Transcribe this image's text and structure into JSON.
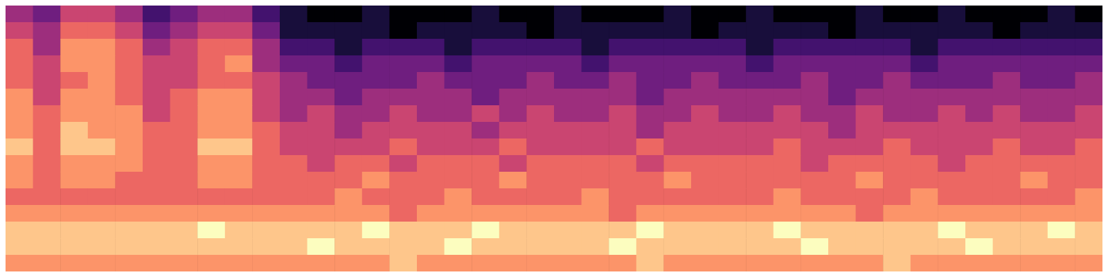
{
  "chart_data": {
    "type": "heatmap",
    "tick_labels": false,
    "zlim": [
      0,
      9
    ],
    "cells": [
      [
        4,
        3,
        5,
        5,
        4,
        2,
        3,
        4,
        4,
        2,
        1,
        0,
        0,
        1,
        0,
        0,
        0,
        1,
        0,
        0,
        1,
        0,
        0,
        0,
        1,
        0,
        0,
        1,
        0,
        0,
        0,
        1,
        0,
        0,
        1,
        0,
        0,
        0,
        1,
        0
      ],
      [
        5,
        4,
        6,
        6,
        5,
        3,
        4,
        5,
        5,
        3,
        1,
        1,
        1,
        1,
        0,
        1,
        1,
        1,
        1,
        0,
        1,
        1,
        1,
        1,
        1,
        0,
        1,
        1,
        1,
        1,
        0,
        1,
        1,
        1,
        1,
        1,
        0,
        1,
        1,
        1
      ],
      [
        6,
        4,
        7,
        7,
        6,
        4,
        5,
        6,
        6,
        4,
        2,
        2,
        1,
        2,
        2,
        2,
        1,
        2,
        2,
        2,
        2,
        1,
        2,
        2,
        2,
        2,
        2,
        1,
        2,
        2,
        2,
        2,
        2,
        1,
        2,
        2,
        2,
        2,
        2,
        2
      ],
      [
        6,
        5,
        7,
        7,
        6,
        5,
        5,
        6,
        7,
        4,
        3,
        3,
        2,
        3,
        3,
        3,
        2,
        3,
        3,
        3,
        3,
        2,
        3,
        3,
        3,
        3,
        3,
        2,
        3,
        3,
        3,
        3,
        3,
        2,
        3,
        3,
        3,
        3,
        3,
        3
      ],
      [
        6,
        5,
        6,
        7,
        6,
        5,
        5,
        6,
        6,
        5,
        4,
        3,
        3,
        3,
        3,
        4,
        3,
        3,
        3,
        4,
        3,
        3,
        4,
        3,
        3,
        4,
        3,
        3,
        3,
        4,
        3,
        3,
        4,
        3,
        3,
        3,
        4,
        3,
        3,
        4
      ],
      [
        7,
        5,
        7,
        7,
        6,
        5,
        6,
        7,
        7,
        5,
        4,
        4,
        3,
        4,
        4,
        4,
        4,
        3,
        4,
        4,
        4,
        4,
        4,
        3,
        4,
        4,
        4,
        4,
        4,
        4,
        3,
        4,
        4,
        4,
        4,
        4,
        4,
        4,
        4,
        4
      ],
      [
        7,
        6,
        7,
        7,
        7,
        5,
        6,
        7,
        7,
        5,
        4,
        5,
        4,
        4,
        5,
        4,
        4,
        5,
        4,
        5,
        4,
        4,
        5,
        4,
        4,
        5,
        4,
        4,
        5,
        4,
        4,
        5,
        4,
        4,
        5,
        4,
        5,
        4,
        4,
        5
      ],
      [
        7,
        6,
        8,
        7,
        7,
        6,
        6,
        7,
        7,
        6,
        5,
        5,
        4,
        5,
        5,
        5,
        5,
        4,
        5,
        5,
        5,
        5,
        5,
        4,
        5,
        5,
        5,
        5,
        5,
        5,
        4,
        5,
        5,
        5,
        5,
        5,
        5,
        5,
        5,
        5
      ],
      [
        8,
        6,
        8,
        8,
        7,
        6,
        6,
        8,
        8,
        6,
        5,
        5,
        5,
        5,
        6,
        5,
        5,
        5,
        6,
        5,
        5,
        5,
        5,
        6,
        5,
        5,
        5,
        5,
        6,
        5,
        5,
        5,
        6,
        5,
        5,
        5,
        6,
        5,
        5,
        6
      ],
      [
        7,
        6,
        7,
        7,
        7,
        6,
        6,
        7,
        7,
        6,
        6,
        5,
        6,
        6,
        5,
        6,
        6,
        6,
        5,
        6,
        6,
        6,
        6,
        5,
        6,
        6,
        6,
        6,
        6,
        5,
        6,
        6,
        6,
        6,
        5,
        6,
        6,
        6,
        6,
        6
      ],
      [
        7,
        6,
        7,
        7,
        6,
        6,
        6,
        7,
        7,
        6,
        6,
        6,
        6,
        7,
        6,
        6,
        6,
        6,
        7,
        6,
        6,
        6,
        6,
        6,
        7,
        6,
        6,
        6,
        6,
        6,
        6,
        7,
        6,
        6,
        6,
        6,
        6,
        7,
        6,
        6
      ],
      [
        6,
        6,
        6,
        6,
        6,
        6,
        6,
        6,
        6,
        6,
        6,
        6,
        7,
        6,
        6,
        6,
        7,
        6,
        6,
        6,
        6,
        7,
        6,
        6,
        6,
        6,
        6,
        6,
        7,
        6,
        6,
        6,
        6,
        7,
        6,
        6,
        6,
        6,
        6,
        7
      ],
      [
        7,
        7,
        7,
        7,
        7,
        7,
        7,
        7,
        7,
        7,
        7,
        7,
        7,
        7,
        6,
        7,
        7,
        7,
        7,
        7,
        7,
        7,
        6,
        7,
        7,
        7,
        7,
        7,
        7,
        7,
        7,
        6,
        7,
        7,
        7,
        7,
        7,
        7,
        7,
        7
      ],
      [
        8,
        8,
        8,
        8,
        8,
        8,
        8,
        9,
        8,
        8,
        8,
        8,
        8,
        9,
        8,
        8,
        8,
        9,
        8,
        8,
        8,
        8,
        8,
        9,
        8,
        8,
        8,
        8,
        9,
        8,
        8,
        8,
        8,
        8,
        9,
        8,
        8,
        8,
        9,
        8
      ],
      [
        8,
        8,
        8,
        8,
        8,
        8,
        8,
        8,
        8,
        8,
        8,
        9,
        8,
        8,
        8,
        8,
        9,
        8,
        8,
        8,
        8,
        8,
        9,
        8,
        8,
        8,
        8,
        8,
        8,
        9,
        8,
        8,
        8,
        8,
        8,
        9,
        8,
        8,
        8,
        8
      ],
      [
        7,
        7,
        7,
        7,
        7,
        7,
        7,
        7,
        7,
        7,
        7,
        7,
        7,
        7,
        8,
        7,
        7,
        7,
        7,
        7,
        7,
        7,
        7,
        8,
        7,
        7,
        7,
        7,
        7,
        7,
        7,
        7,
        8,
        7,
        7,
        7,
        7,
        7,
        7,
        7
      ]
    ]
  }
}
